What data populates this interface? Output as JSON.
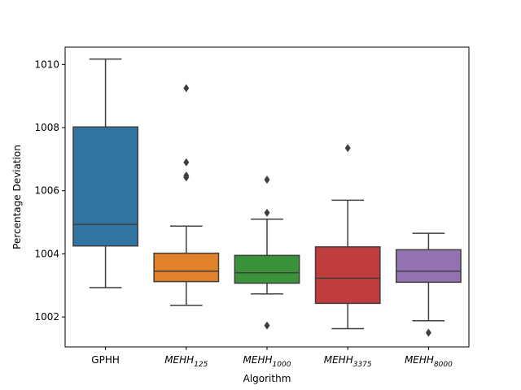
{
  "chart_data": {
    "type": "box",
    "xlabel": "Algorithm",
    "ylabel": "Percentage Deviation",
    "ylim": [
      1001.05,
      1010.55
    ],
    "yticks": [
      1002,
      1004,
      1006,
      1008,
      1010
    ],
    "yticklabels": [
      "1002",
      "1004",
      "1006",
      "1008",
      "1010"
    ],
    "grid": false,
    "categories": [
      {
        "base": "GPHH",
        "sub": "",
        "italic": false
      },
      {
        "base": "MEHH",
        "sub": "125",
        "italic": true
      },
      {
        "base": "MEHH",
        "sub": "1000",
        "italic": true
      },
      {
        "base": "MEHH",
        "sub": "3375",
        "italic": true
      },
      {
        "base": "MEHH",
        "sub": "8000",
        "italic": true
      }
    ],
    "boxes": [
      {
        "whisker_low": 1002.93,
        "q1": 1004.25,
        "median": 1004.93,
        "q3": 1008.02,
        "whisker_high": 1010.17,
        "outliers": [],
        "color": "#3274a1"
      },
      {
        "whisker_low": 1002.37,
        "q1": 1003.12,
        "median": 1003.45,
        "q3": 1004.02,
        "whisker_high": 1004.88,
        "outliers": [
          1006.42,
          1006.48,
          1006.9,
          1009.25
        ],
        "color": "#e1812c"
      },
      {
        "whisker_low": 1002.73,
        "q1": 1003.07,
        "median": 1003.4,
        "q3": 1003.95,
        "whisker_high": 1005.1,
        "outliers": [
          1001.73,
          1005.3,
          1006.35
        ],
        "color": "#3a923a"
      },
      {
        "whisker_low": 1001.63,
        "q1": 1002.43,
        "median": 1003.23,
        "q3": 1004.22,
        "whisker_high": 1005.7,
        "outliers": [
          1007.35
        ],
        "color": "#c03d3e"
      },
      {
        "whisker_low": 1001.88,
        "q1": 1003.1,
        "median": 1003.45,
        "q3": 1004.13,
        "whisker_high": 1004.65,
        "outliers": [
          1001.5
        ],
        "color": "#9372b2"
      }
    ]
  }
}
